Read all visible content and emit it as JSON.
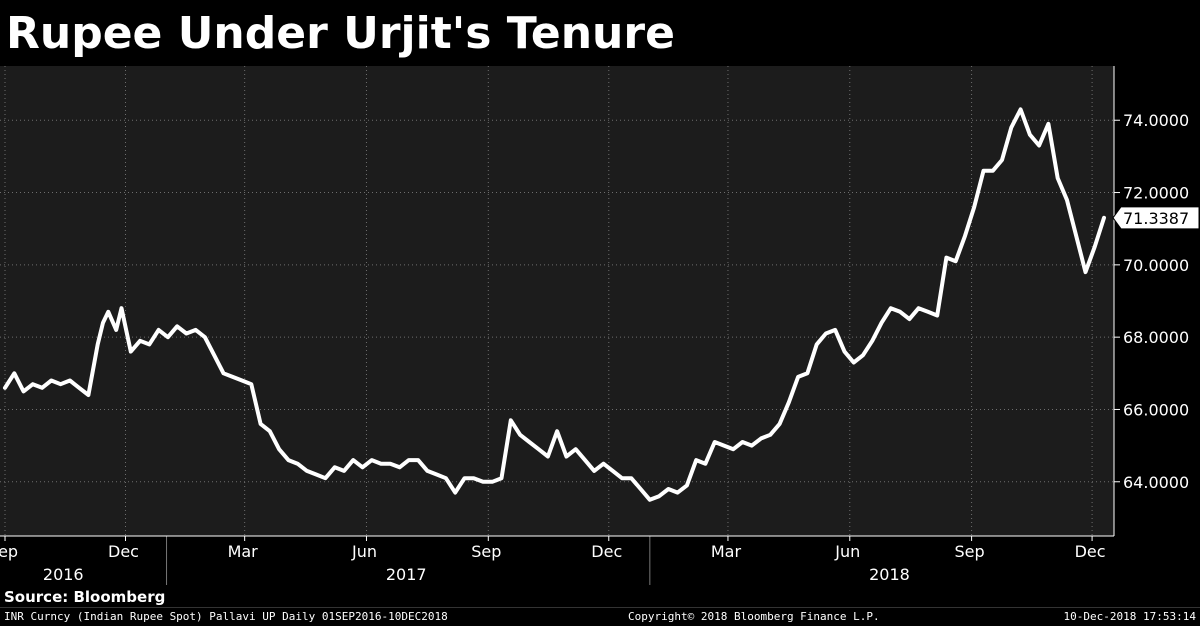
{
  "chart_data": {
    "type": "line",
    "title": "Rupee Under Urjit's Tenure",
    "x_range": [
      "2016-09-01",
      "2018-12-10"
    ],
    "ylim": [
      62.5,
      75.5
    ],
    "y_ticks": [
      "64.0000",
      "66.0000",
      "68.0000",
      "70.0000",
      "72.0000",
      "74.0000"
    ],
    "y_tick_values": [
      64,
      66,
      68,
      70,
      72,
      74
    ],
    "month_ticks": [
      {
        "label": "Sep",
        "date": "2016-09-01"
      },
      {
        "label": "Dec",
        "date": "2016-12-01"
      },
      {
        "label": "Mar",
        "date": "2017-03-01"
      },
      {
        "label": "Jun",
        "date": "2017-06-01"
      },
      {
        "label": "Sep",
        "date": "2017-09-01"
      },
      {
        "label": "Dec",
        "date": "2017-12-01"
      },
      {
        "label": "Mar",
        "date": "2018-03-01"
      },
      {
        "label": "Jun",
        "date": "2018-06-01"
      },
      {
        "label": "Sep",
        "date": "2018-09-01"
      },
      {
        "label": "Dec",
        "date": "2018-12-01"
      }
    ],
    "year_labels": [
      {
        "label": "2016",
        "date": "2016-10-15"
      },
      {
        "label": "2017",
        "date": "2017-07-01"
      },
      {
        "label": "2018",
        "date": "2018-07-01"
      }
    ],
    "year_dividers": [
      "2017-01-01",
      "2018-01-01"
    ],
    "last_value_label": "71.3387",
    "series": [
      {
        "x": [
          "2016-09-01",
          "2016-09-08",
          "2016-09-15",
          "2016-09-22",
          "2016-09-29",
          "2016-10-06",
          "2016-10-13",
          "2016-10-20",
          "2016-10-27",
          "2016-11-03",
          "2016-11-10",
          "2016-11-14",
          "2016-11-18",
          "2016-11-24",
          "2016-11-28",
          "2016-12-05",
          "2016-12-12",
          "2016-12-19",
          "2016-12-26",
          "2017-01-02",
          "2017-01-09",
          "2017-01-16",
          "2017-01-23",
          "2017-01-30",
          "2017-02-06",
          "2017-02-13",
          "2017-02-20",
          "2017-02-27",
          "2017-03-06",
          "2017-03-13",
          "2017-03-20",
          "2017-03-27",
          "2017-04-03",
          "2017-04-10",
          "2017-04-17",
          "2017-04-24",
          "2017-05-01",
          "2017-05-08",
          "2017-05-15",
          "2017-05-22",
          "2017-05-29",
          "2017-06-05",
          "2017-06-12",
          "2017-06-19",
          "2017-06-26",
          "2017-07-03",
          "2017-07-10",
          "2017-07-17",
          "2017-07-24",
          "2017-07-31",
          "2017-08-07",
          "2017-08-14",
          "2017-08-21",
          "2017-08-28",
          "2017-09-04",
          "2017-09-11",
          "2017-09-18",
          "2017-09-25",
          "2017-10-02",
          "2017-10-09",
          "2017-10-16",
          "2017-10-23",
          "2017-10-30",
          "2017-11-06",
          "2017-11-13",
          "2017-11-20",
          "2017-11-27",
          "2017-12-04",
          "2017-12-11",
          "2017-12-18",
          "2017-12-25",
          "2018-01-01",
          "2018-01-08",
          "2018-01-15",
          "2018-01-22",
          "2018-01-29",
          "2018-02-05",
          "2018-02-12",
          "2018-02-19",
          "2018-02-26",
          "2018-03-05",
          "2018-03-12",
          "2018-03-19",
          "2018-03-26",
          "2018-04-02",
          "2018-04-09",
          "2018-04-16",
          "2018-04-23",
          "2018-04-30",
          "2018-05-07",
          "2018-05-14",
          "2018-05-21",
          "2018-05-28",
          "2018-06-04",
          "2018-06-11",
          "2018-06-18",
          "2018-06-25",
          "2018-07-02",
          "2018-07-09",
          "2018-07-16",
          "2018-07-23",
          "2018-07-30",
          "2018-08-06",
          "2018-08-13",
          "2018-08-20",
          "2018-08-27",
          "2018-09-03",
          "2018-09-10",
          "2018-09-17",
          "2018-09-24",
          "2018-10-01",
          "2018-10-08",
          "2018-10-15",
          "2018-10-22",
          "2018-10-29",
          "2018-11-05",
          "2018-11-12",
          "2018-11-19",
          "2018-11-26",
          "2018-12-03",
          "2018-12-10"
        ],
        "y": [
          66.6,
          67.0,
          66.5,
          66.7,
          66.6,
          66.8,
          66.7,
          66.8,
          66.6,
          66.4,
          67.8,
          68.4,
          68.7,
          68.2,
          68.8,
          67.6,
          67.9,
          67.8,
          68.2,
          68.0,
          68.3,
          68.1,
          68.2,
          68.0,
          67.5,
          67.0,
          66.9,
          66.8,
          66.7,
          65.6,
          65.4,
          64.9,
          64.6,
          64.5,
          64.3,
          64.2,
          64.1,
          64.4,
          64.3,
          64.6,
          64.4,
          64.6,
          64.5,
          64.5,
          64.4,
          64.6,
          64.6,
          64.3,
          64.2,
          64.1,
          63.7,
          64.1,
          64.1,
          64.0,
          64.0,
          64.1,
          65.7,
          65.3,
          65.1,
          64.9,
          64.7,
          65.4,
          64.7,
          64.9,
          64.6,
          64.3,
          64.5,
          64.3,
          64.1,
          64.1,
          63.8,
          63.5,
          63.6,
          63.8,
          63.7,
          63.9,
          64.6,
          64.5,
          65.1,
          65.0,
          64.9,
          65.1,
          65.0,
          65.2,
          65.3,
          65.6,
          66.2,
          66.9,
          67.0,
          67.8,
          68.1,
          68.2,
          67.6,
          67.3,
          67.5,
          67.9,
          68.4,
          68.8,
          68.7,
          68.5,
          68.8,
          68.7,
          68.6,
          70.2,
          70.1,
          70.8,
          71.6,
          72.6,
          72.6,
          72.9,
          73.8,
          74.3,
          73.6,
          73.3,
          73.9,
          72.4,
          71.8,
          70.8,
          69.8,
          70.5,
          71.3
        ]
      }
    ]
  },
  "source": "Source: Bloomberg",
  "footer": {
    "left": "INR Curncy (Indian Rupee Spot) Pallavi UP  Daily 01SEP2016-10DEC2018",
    "center": "Copyright© 2018 Bloomberg Finance L.P.",
    "right": "10-Dec-2018 17:53:14"
  },
  "colors": {
    "background": "#000000",
    "plot_background": "#1c1c1c",
    "line": "#ffffff",
    "grid": "#6e6e6e"
  }
}
